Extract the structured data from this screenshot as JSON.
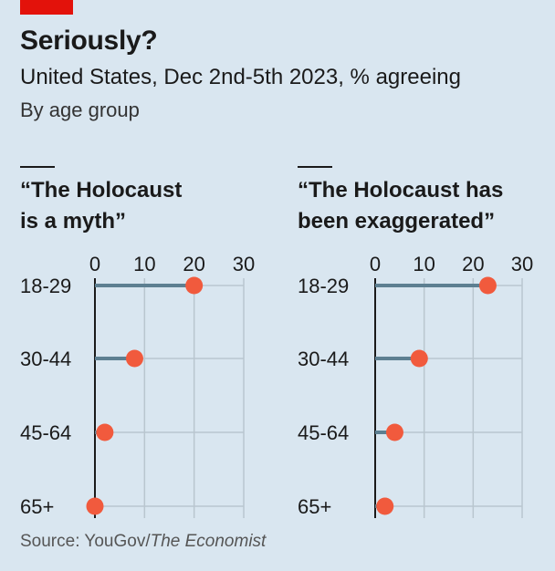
{
  "header": {
    "title": "Seriously?",
    "subtitle": "United States, Dec 2nd-5th 2023, % agreeing",
    "subtitle2": "By age group"
  },
  "footer": {
    "source_prefix": "Source: YouGov/",
    "source_italic": "The Economist"
  },
  "colors": {
    "background": "#d9e6f0",
    "dot": "#f15a3d",
    "stem": "#5d7f91",
    "grid": "#b9c6cf",
    "brand": "#e3120b"
  },
  "chart_data": [
    {
      "type": "dot",
      "title_line1": "“The Holocaust",
      "title_line2": "is a myth”",
      "xlim": [
        0,
        30
      ],
      "ticks": [
        "0",
        "10",
        "20",
        "30"
      ],
      "categories": [
        "18-29",
        "30-44",
        "45-64",
        "65+"
      ],
      "values": [
        20,
        8,
        2,
        0
      ]
    },
    {
      "type": "dot",
      "title_line1": "“The Holocaust has",
      "title_line2": "been exaggerated”",
      "xlim": [
        0,
        30
      ],
      "ticks": [
        "0",
        "10",
        "20",
        "30"
      ],
      "categories": [
        "18-29",
        "30-44",
        "45-64",
        "65+"
      ],
      "values": [
        23,
        9,
        4,
        2
      ]
    }
  ]
}
